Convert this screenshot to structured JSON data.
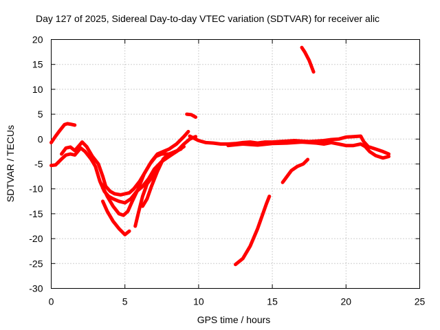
{
  "chart_data": {
    "type": "line",
    "title": "Day 127 of 2025, Sidereal Day-to-day VTEC variation (SDTVAR) for receiver alic",
    "xlabel": "GPS time / hours",
    "ylabel": "SDTVAR / TECUs",
    "xlim": [
      0,
      25
    ],
    "ylim": [
      -30,
      20
    ],
    "x_ticks": [
      "0",
      "5",
      "10",
      "15",
      "20",
      "25"
    ],
    "y_ticks": [
      "20",
      "15",
      "10",
      "5",
      "0",
      "-5",
      "-10",
      "-15",
      "-20",
      "-25",
      "-30"
    ],
    "grid": true,
    "legend": "none",
    "color": "#ff0000",
    "series": [
      {
        "name": "trace-1",
        "x": [
          0.0,
          0.3,
          0.6,
          0.9,
          1.1,
          1.3,
          1.6
        ],
        "y": [
          -0.7,
          0.6,
          1.8,
          2.9,
          3.1,
          3.0,
          2.8
        ]
      },
      {
        "name": "trace-2",
        "x": [
          0.0,
          0.3,
          0.7,
          1.0,
          1.3,
          1.6,
          2.0,
          2.3,
          2.7,
          3.0,
          3.3,
          3.6,
          3.9,
          4.2,
          4.6,
          5.0,
          5.4,
          5.8,
          6.2,
          6.6,
          7.0,
          7.5,
          8.0,
          8.5,
          9.0,
          9.4,
          9.8
        ],
        "y": [
          -5.3,
          -5.2,
          -4.0,
          -3.2,
          -3.0,
          -3.2,
          -1.8,
          -2.5,
          -4.0,
          -5.5,
          -8.5,
          -10.5,
          -11.5,
          -12.0,
          -12.5,
          -12.8,
          -12.0,
          -10.5,
          -9.5,
          -8.0,
          -6.0,
          -4.5,
          -3.5,
          -2.5,
          -1.0,
          0.0,
          0.5
        ]
      },
      {
        "name": "trace-3",
        "x": [
          0.7,
          1.0,
          1.3,
          1.6,
          1.9,
          2.1,
          2.4,
          2.8,
          3.2,
          3.5,
          3.7,
          4.0,
          4.3,
          4.7,
          5.0,
          5.3,
          5.6,
          6.0,
          6.4,
          6.8,
          7.2,
          7.6,
          8.0,
          8.5,
          9.0,
          9.3
        ],
        "y": [
          -3.0,
          -1.8,
          -1.6,
          -2.3,
          -1.3,
          -0.6,
          -1.5,
          -3.5,
          -5.0,
          -7.5,
          -9.5,
          -10.5,
          -11.0,
          -11.2,
          -11.0,
          -10.8,
          -10.0,
          -8.5,
          -6.5,
          -4.5,
          -3.0,
          -2.5,
          -2.0,
          -1.0,
          0.5,
          1.5
        ]
      },
      {
        "name": "trace-4",
        "x": [
          3.4,
          3.8,
          4.2,
          4.6,
          4.9,
          5.2,
          5.5,
          5.9,
          6.3,
          6.7,
          7.1,
          7.5,
          8.0,
          8.5,
          9.0
        ],
        "y": [
          -9.0,
          -11.5,
          -13.5,
          -15.0,
          -15.3,
          -14.5,
          -12.5,
          -10.0,
          -7.0,
          -5.0,
          -3.5,
          -3.0,
          -3.0,
          -2.5,
          -1.5
        ]
      },
      {
        "name": "trace-5",
        "x": [
          3.5,
          3.8,
          4.2,
          4.6,
          5.0,
          5.3
        ],
        "y": [
          -12.5,
          -14.5,
          -16.5,
          -18.0,
          -19.2,
          -18.5
        ]
      },
      {
        "name": "trace-6",
        "x": [
          5.7,
          5.9,
          6.2,
          6.5,
          6.9,
          7.2
        ],
        "y": [
          -17.5,
          -15.0,
          -11.5,
          -9.0,
          -7.5,
          -5.5
        ]
      },
      {
        "name": "trace-7",
        "x": [
          6.2,
          6.5,
          6.8,
          7.2,
          7.6,
          8.0,
          8.4,
          8.8
        ],
        "y": [
          -13.5,
          -12.0,
          -9.5,
          -6.5,
          -4.0,
          -3.0,
          -2.5,
          -2.0
        ]
      },
      {
        "name": "trace-8",
        "x": [
          9.2,
          9.5,
          9.8
        ],
        "y": [
          5.0,
          4.9,
          4.4
        ]
      },
      {
        "name": "trace-9",
        "x": [
          9.4,
          10.0,
          10.5,
          11.0,
          11.5,
          12.0,
          12.5,
          13.0,
          13.5,
          14.0,
          14.5,
          15.0,
          15.5,
          16.0,
          16.5,
          17.0,
          17.5,
          18.0,
          18.5,
          19.0,
          19.5,
          20.0,
          20.5,
          21.0,
          21.2,
          21.5,
          22.0,
          22.5,
          22.9
        ],
        "y": [
          0.6,
          -0.3,
          -0.7,
          -0.8,
          -1.0,
          -1.0,
          -0.9,
          -0.7,
          -0.6,
          -0.8,
          -0.6,
          -0.6,
          -0.5,
          -0.4,
          -0.3,
          -0.4,
          -0.5,
          -0.4,
          -0.3,
          -0.1,
          0.0,
          0.4,
          0.5,
          0.6,
          -0.5,
          -1.5,
          -2.0,
          -2.5,
          -3.0
        ]
      },
      {
        "name": "trace-10",
        "x": [
          12.0,
          13.0,
          14.0,
          15.0,
          16.0,
          17.0,
          18.0,
          18.5,
          19.0,
          19.5,
          20.0,
          20.5,
          21.0,
          21.3,
          21.6,
          22.0,
          22.5,
          22.9
        ],
        "y": [
          -1.3,
          -1.0,
          -1.2,
          -0.9,
          -0.8,
          -0.6,
          -0.8,
          -1.0,
          -0.7,
          -1.0,
          -1.3,
          -1.3,
          -1.0,
          -1.5,
          -2.5,
          -3.3,
          -3.8,
          -3.5
        ]
      },
      {
        "name": "trace-11",
        "x": [
          12.5,
          13.0,
          13.5,
          14.0,
          14.3,
          14.6,
          14.8
        ],
        "y": [
          -25.2,
          -24.0,
          -21.5,
          -18.0,
          -15.5,
          -13.0,
          -11.5
        ]
      },
      {
        "name": "trace-12",
        "x": [
          15.7,
          16.0,
          16.3,
          16.7,
          17.1,
          17.4
        ],
        "y": [
          -8.7,
          -7.5,
          -6.3,
          -5.5,
          -5.0,
          -4.1
        ]
      },
      {
        "name": "trace-13",
        "x": [
          17.0,
          17.2,
          17.5,
          17.8
        ],
        "y": [
          18.4,
          17.5,
          15.8,
          13.5
        ]
      }
    ]
  }
}
